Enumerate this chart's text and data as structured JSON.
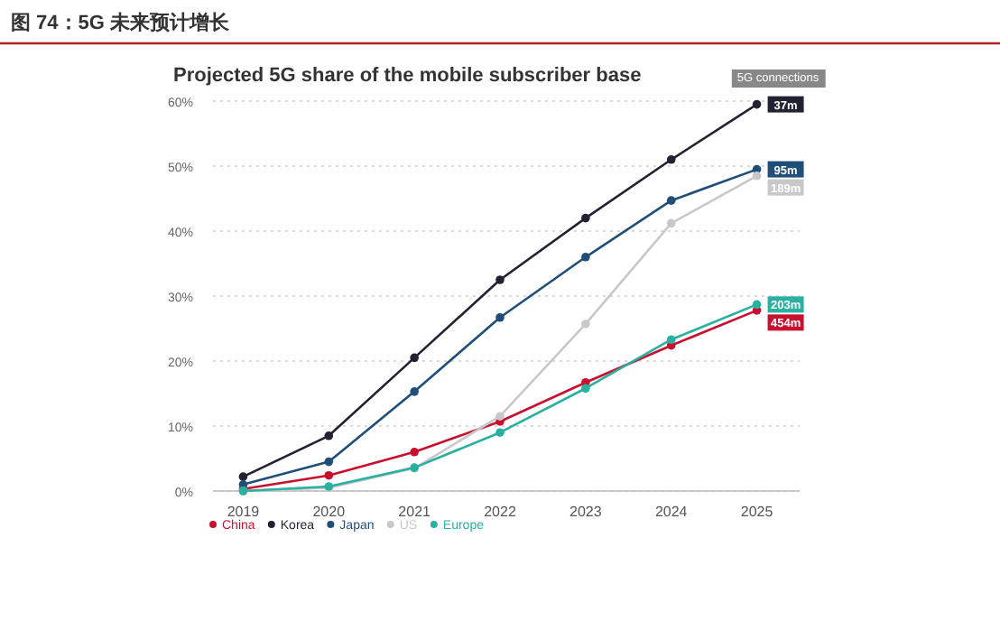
{
  "chart_data": {
    "type": "line",
    "title": "图 74：5G 未来预计增长",
    "subtitle": "Projected 5G share of the mobile subscriber base",
    "categories": [
      "2019",
      "2020",
      "2021",
      "2022",
      "2023",
      "2024",
      "2025"
    ],
    "series": [
      {
        "name": "China",
        "color": "#c8102e",
        "values": [
          0.3,
          2.4,
          6,
          10.7,
          16.7,
          22.4,
          27.8
        ]
      },
      {
        "name": "Korea",
        "color": "#222233",
        "values": [
          2.2,
          8.5,
          20.5,
          32.5,
          42,
          51,
          59.5
        ]
      },
      {
        "name": "Japan",
        "color": "#1f4e79",
        "values": [
          1,
          4.5,
          15.3,
          26.7,
          36,
          44.7,
          49.5
        ]
      },
      {
        "name": "US",
        "color": "#c8c8c8",
        "values": [
          0,
          0.5,
          3.5,
          11.5,
          25.7,
          41.2,
          48.5
        ]
      },
      {
        "name": "Europe",
        "color": "#2ab0a0",
        "values": [
          0,
          0.7,
          3.6,
          9,
          15.8,
          23.3,
          28.7
        ]
      }
    ],
    "annotations": [
      "5G connections",
      {
        "text": "454m",
        "x": "2025",
        "y": 27.8
      },
      {
        "text": "37m",
        "x": "2025",
        "y": 59.5
      },
      {
        "text": "95m",
        "x": "2025",
        "y": 49.5
      },
      {
        "text": "189m",
        "x": "2025",
        "y": 48.5
      },
      {
        "text": "203m",
        "x": "2025",
        "y": 28.7
      }
    ],
    "ylim": [
      0,
      60
    ],
    "yticks": [
      {
        "value": 0,
        "label": "0%"
      },
      {
        "value": 10,
        "label": "10%"
      },
      {
        "value": 20,
        "label": "20%"
      },
      {
        "value": 30,
        "label": "30%"
      },
      {
        "value": 40,
        "label": "40%"
      },
      {
        "value": 50,
        "label": "50%"
      },
      {
        "value": 60,
        "label": "60%"
      }
    ],
    "grid": "y",
    "legend": "bottom left",
    "marker": "circle",
    "line_style": "solid"
  }
}
